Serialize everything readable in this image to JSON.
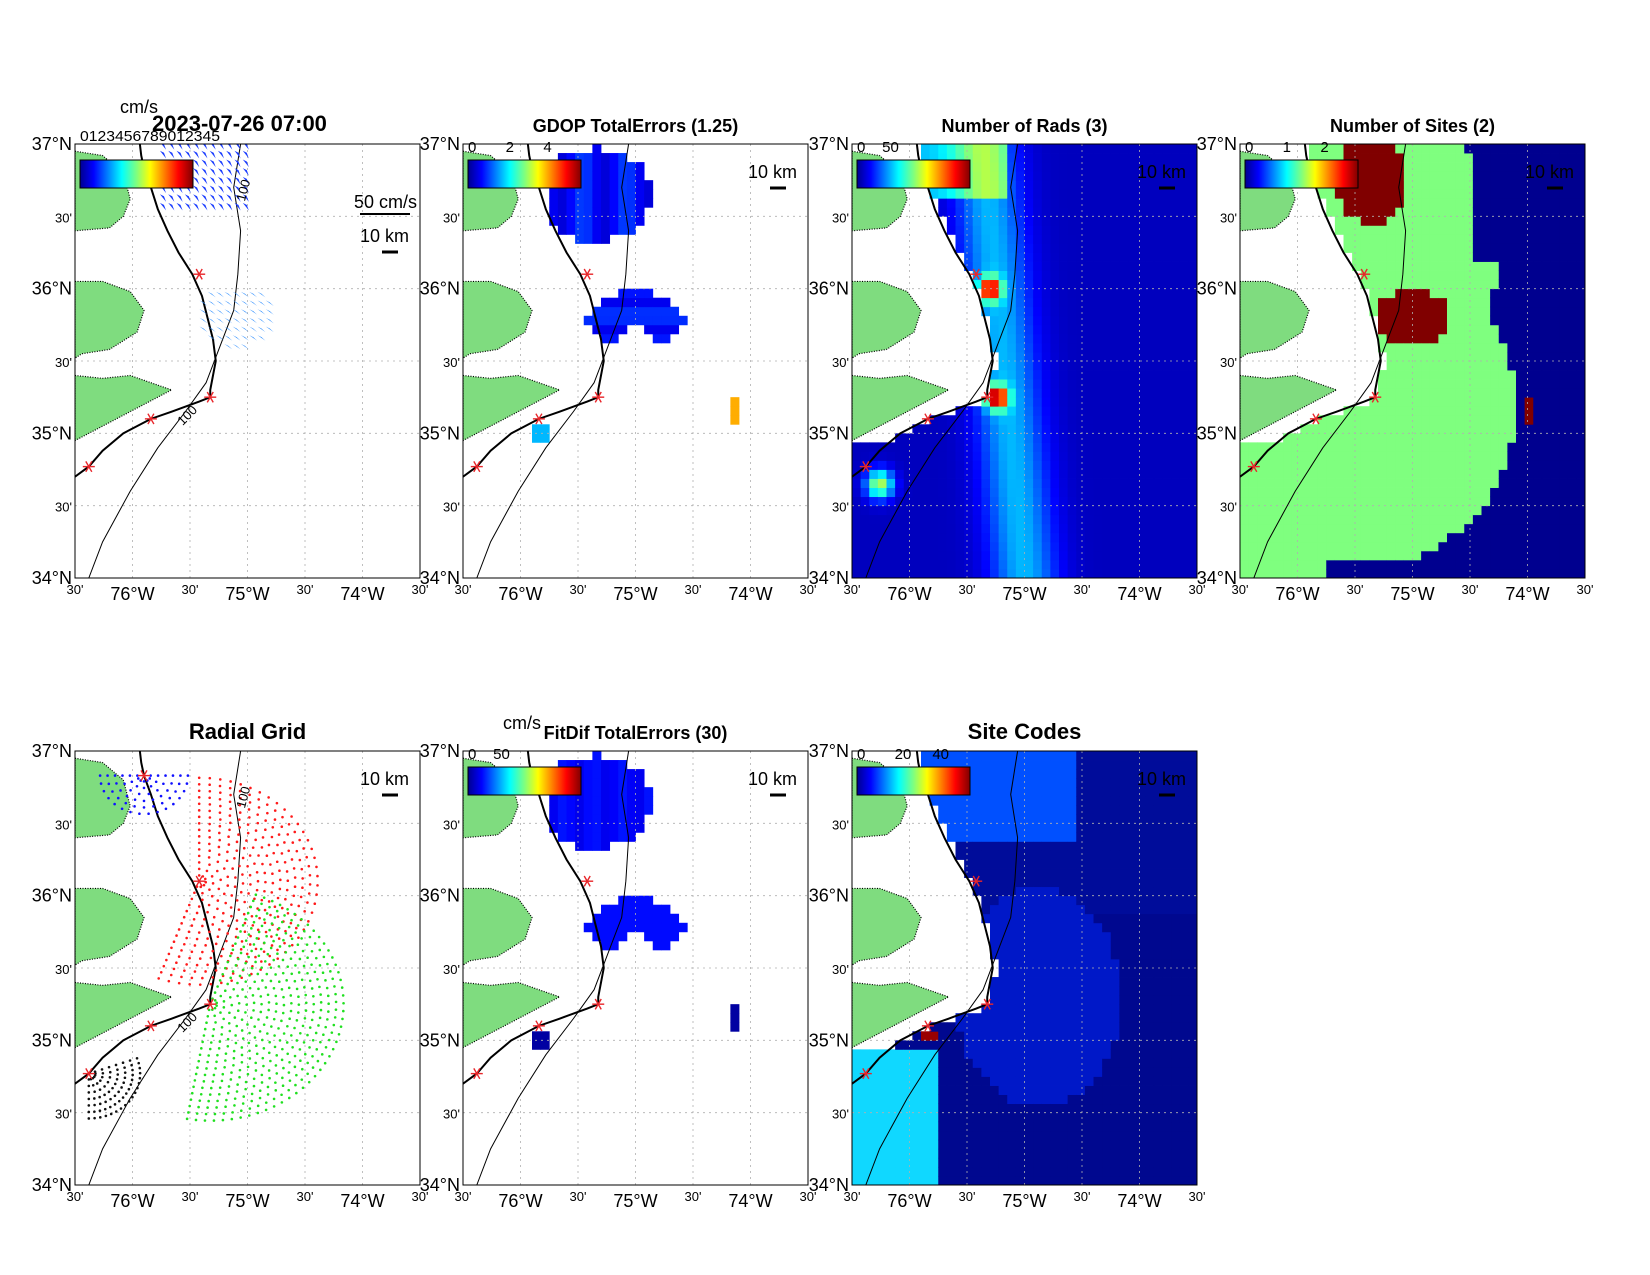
{
  "figure": {
    "timestamp": "2023-07-26 07:00",
    "velocity_units": "cm/s",
    "vector_scale_label": "50 cm/s",
    "overlapped_legend_text": "0123456789012345"
  },
  "axis_labels": {
    "lat": [
      "37°N",
      "30'",
      "36°N",
      "30'",
      "35°N",
      "30'",
      "34°N"
    ],
    "lon": [
      "30'",
      "76°W",
      "30'",
      "75°W",
      "30'",
      "74°W",
      "30'"
    ]
  },
  "scale_bar": "10 km",
  "contour_label": "100",
  "colors": {
    "land": "#7fdc7f",
    "coast": "#000000",
    "site_marker": "#e8262a",
    "grid": "#b0b0b0"
  },
  "panels": [
    {
      "id": "velocity",
      "title": "",
      "colorbar_ticks": [],
      "colorbar_units": "cm/s",
      "fill": "vectors"
    },
    {
      "id": "gdop",
      "title": "GDOP TotalErrors (1.25)",
      "colorbar_ticks": [
        "0",
        "2",
        "4"
      ],
      "colorbar_units": "",
      "fill": "cells"
    },
    {
      "id": "nrads",
      "title": "Number of Rads (3)",
      "colorbar_ticks": [
        "0",
        "50"
      ],
      "colorbar_units": "",
      "fill": "density"
    },
    {
      "id": "nsites",
      "title": "Number of Sites (2)",
      "colorbar_ticks": [
        "0",
        "1",
        "2"
      ],
      "colorbar_units": "",
      "fill": "sites"
    },
    {
      "id": "radgrid",
      "title": "Radial Grid",
      "colorbar_ticks": [],
      "colorbar_units": "",
      "fill": "radial"
    },
    {
      "id": "fitdif",
      "title": "FitDif TotalErrors (30)",
      "colorbar_ticks": [
        "0",
        "50"
      ],
      "colorbar_units": "cm/s",
      "fill": "cells"
    },
    {
      "id": "sitecodes",
      "title": "Site Codes",
      "colorbar_ticks": [
        "0",
        "20",
        "40"
      ],
      "colorbar_units": "",
      "fill": "codes"
    }
  ],
  "map_extent": {
    "lon_min": -76.5,
    "lon_max": -74.0,
    "lat_min": 34.0,
    "lat_max": 37.0
  },
  "sites": [
    {
      "lon": -76.0,
      "lat": 36.83
    },
    {
      "lon": -75.6,
      "lat": 36.1
    },
    {
      "lon": -75.52,
      "lat": 35.25
    },
    {
      "lon": -75.95,
      "lat": 35.1
    },
    {
      "lon": -76.4,
      "lat": 34.77
    }
  ]
}
